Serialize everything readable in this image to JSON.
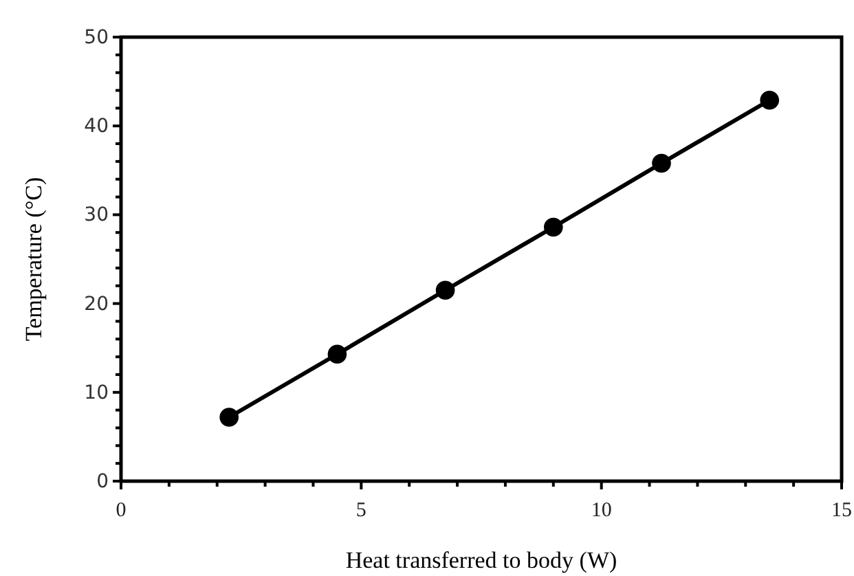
{
  "chart_data": {
    "type": "line",
    "xlabel": "Heat transferred to body (W)",
    "ylabel": "Temperature (°C)",
    "x": [
      2.25,
      4.5,
      6.75,
      9,
      11.25,
      13.5
    ],
    "series": [
      {
        "color": "#000000",
        "values": [
          7.2,
          14.3,
          21.5,
          28.6,
          35.8,
          42.9
        ]
      }
    ],
    "xlim": [
      0,
      15
    ],
    "ylim": [
      0,
      50
    ],
    "xticks": [
      0,
      {
        "value": 1,
        "label": null
      },
      {
        "value": 2,
        "label": null
      },
      {
        "value": 3,
        "label": null
      },
      {
        "value": 4,
        "label": null
      },
      5,
      {
        "value": 6,
        "label": null
      },
      {
        "value": 7,
        "label": null
      },
      {
        "value": 8,
        "label": null
      },
      {
        "value": 9,
        "label": null
      },
      10,
      {
        "value": 11,
        "label": null
      },
      {
        "value": 12,
        "label": null
      },
      {
        "value": 13,
        "label": null
      },
      {
        "value": 14,
        "label": null
      },
      15
    ],
    "yticks": [
      0,
      {
        "value": 2,
        "label": null
      },
      {
        "value": 4,
        "label": null
      },
      {
        "value": 6,
        "label": null
      },
      {
        "value": 8,
        "label": null
      },
      10,
      {
        "value": 12,
        "label": null
      },
      {
        "value": 14,
        "label": null
      },
      {
        "value": 16,
        "label": null
      },
      {
        "value": 18,
        "label": null
      },
      20,
      {
        "value": 22,
        "label": null
      },
      {
        "value": 24,
        "label": null
      },
      {
        "value": 26,
        "label": null
      },
      {
        "value": 28,
        "label": null
      },
      30,
      {
        "value": 32,
        "label": null
      },
      {
        "value": 34,
        "label": null
      },
      {
        "value": 36,
        "label": null
      },
      {
        "value": 38,
        "label": null
      },
      40,
      {
        "value": 42,
        "label": null
      },
      {
        "value": 44,
        "label": null
      },
      {
        "value": 46,
        "label": null
      },
      {
        "value": 48,
        "label": null
      },
      50
    ],
    "marker": "circle",
    "line_style": "solid",
    "grid": false
  }
}
